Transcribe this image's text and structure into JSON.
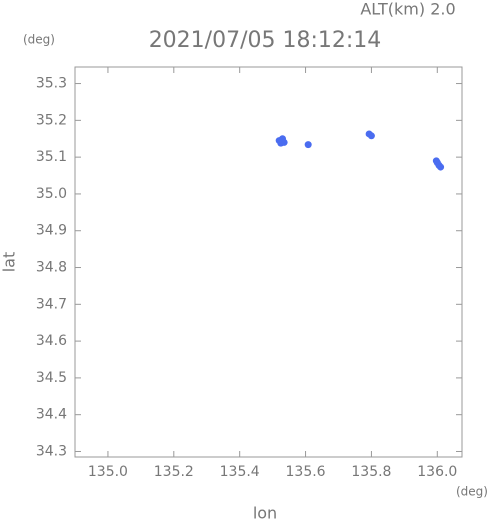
{
  "chart_data": {
    "type": "scatter",
    "title": "2021/07/05 18:12:14",
    "subtitle": "ALT(km) 2.0",
    "y_unit": "(deg)",
    "x_unit": "(deg)",
    "x_label": "lon",
    "y_label": "lat",
    "xlim": [
      134.9,
      136.075
    ],
    "ylim": [
      34.285,
      35.345
    ],
    "xticks": [
      {
        "value": 135.0,
        "label": "135.0"
      },
      135.2,
      135.4,
      135.6,
      135.8,
      {
        "value": 136.0,
        "label": "136.0"
      }
    ],
    "yticks": [
      35.3,
      35.2,
      35.1,
      {
        "value": 35.0,
        "label": "35.0"
      },
      34.9,
      34.8,
      34.7,
      34.6,
      34.5,
      34.4,
      34.3
    ],
    "series": [
      {
        "color": "#4a6cf0",
        "x": [
          135.52,
          135.53,
          135.535,
          135.525,
          135.53,
          135.608,
          135.793,
          135.8,
          135.997,
          136.0,
          136.005,
          136.01
        ],
        "values": [
          35.145,
          35.15,
          35.14,
          35.138,
          35.145,
          35.134,
          35.163,
          35.158,
          35.09,
          35.085,
          35.078,
          35.073
        ]
      }
    ]
  }
}
